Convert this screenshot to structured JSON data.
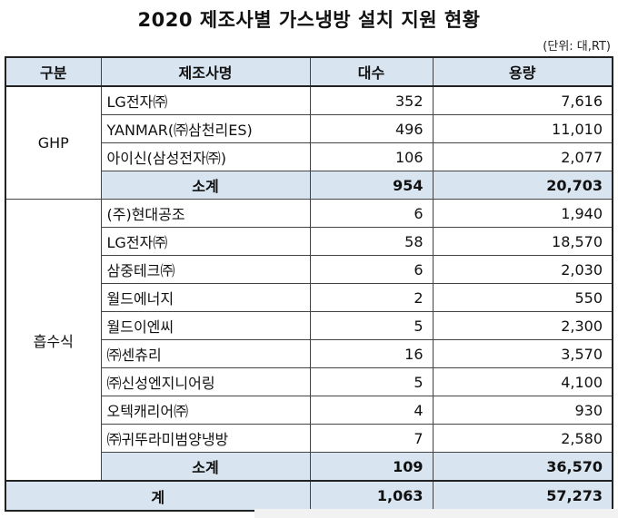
{
  "title": "2020 제조사별 가스냉방 설치 지원 현황",
  "unit": "(단위: 대,RT)",
  "headers": [
    "구분",
    "제조사명",
    "대수",
    "용량"
  ],
  "groups": [
    {
      "name": "GHP",
      "rows": [
        {
          "maker": "LG전자㈜",
          "count": "352",
          "capacity": "7,616"
        },
        {
          "maker": "YANMAR(㈜삼천리ES)",
          "count": "496",
          "capacity": "11,010"
        },
        {
          "maker": "아이신(삼성전자㈜)",
          "count": "106",
          "capacity": "2,077"
        }
      ],
      "subtotal": {
        "label": "소계",
        "count": "954",
        "capacity": "20,703"
      }
    },
    {
      "name": "흡수식",
      "rows": [
        {
          "maker": "(주)현대공조",
          "count": "6",
          "capacity": "1,940"
        },
        {
          "maker": "LG전자㈜",
          "count": "58",
          "capacity": "18,570"
        },
        {
          "maker": "삼중테크㈜",
          "count": "6",
          "capacity": "2,030"
        },
        {
          "maker": "월드에너지",
          "count": "2",
          "capacity": "550"
        },
        {
          "maker": "월드이엔씨",
          "count": "5",
          "capacity": "2,300"
        },
        {
          "maker": "㈜센츄리",
          "count": "16",
          "capacity": "3,570"
        },
        {
          "maker": "㈜신성엔지니어링",
          "count": "5",
          "capacity": "4,100"
        },
        {
          "maker": "오텍캐리어㈜",
          "count": "4",
          "capacity": "930"
        },
        {
          "maker": "㈜귀뚜라미범양냉방",
          "count": "7",
          "capacity": "2,580"
        }
      ],
      "subtotal": {
        "label": "소계",
        "count": "109",
        "capacity": "36,570"
      }
    }
  ],
  "total": {
    "label": "계",
    "count": "1,063",
    "capacity": "57,273"
  },
  "colors": {
    "header_bg": "#d8e4f0",
    "border": "#444444"
  }
}
